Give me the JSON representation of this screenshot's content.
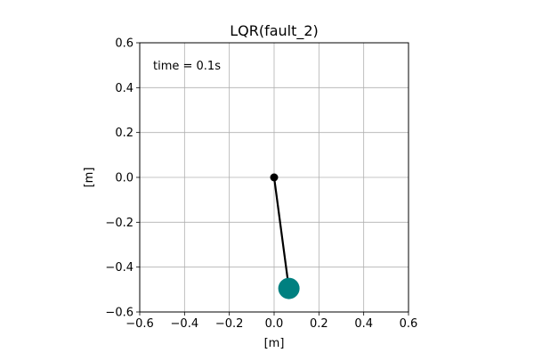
{
  "chart_data": {
    "type": "scatter",
    "title": "LQR(fault_2)",
    "xlabel": "[m]",
    "ylabel": "[m]",
    "xlim": [
      -0.6,
      0.6
    ],
    "ylim": [
      -0.6,
      0.6
    ],
    "xticks": [
      -0.6,
      -0.4,
      -0.2,
      0.0,
      0.2,
      0.4,
      0.6
    ],
    "yticks": [
      -0.6,
      -0.4,
      -0.2,
      0.0,
      0.2,
      0.4,
      0.6
    ],
    "xtick_labels": [
      "−0.6",
      "−0.4",
      "−0.2",
      "0.0",
      "0.2",
      "0.4",
      "0.6"
    ],
    "ytick_labels": [
      "−0.6",
      "−0.4",
      "−0.2",
      "0.0",
      "0.2",
      "0.4",
      "0.6"
    ],
    "grid": true,
    "annotation": "time = 0.1s",
    "pendulum": {
      "pivot": {
        "x": 0.0,
        "y": 0.0
      },
      "bob": {
        "x": 0.066,
        "y": -0.495
      },
      "rod_color": "#000000",
      "pivot_color": "#000000",
      "bob_color": "#008080"
    }
  }
}
